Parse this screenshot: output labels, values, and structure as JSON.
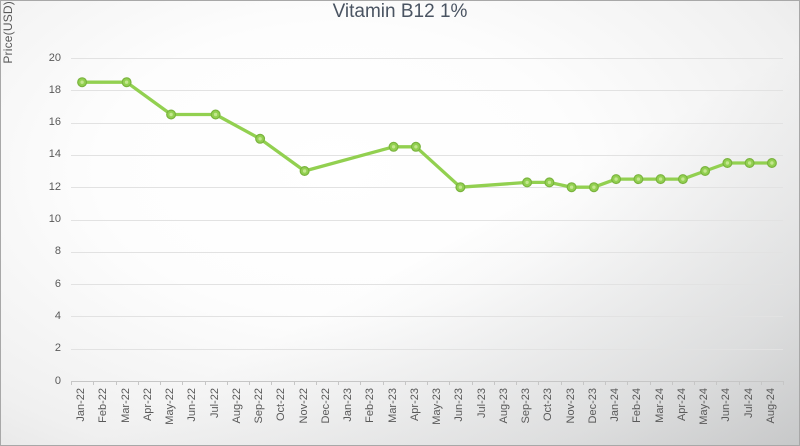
{
  "chart_data": {
    "type": "line",
    "title": "Vitamin B12 1%",
    "xlabel": "",
    "ylabel": "Price(USD)",
    "ylim": [
      0,
      20
    ],
    "yticks": [
      0,
      2,
      4,
      6,
      8,
      10,
      12,
      14,
      16,
      18,
      20
    ],
    "grid": true,
    "legend_position": "none",
    "line_color": "#92d050",
    "marker_edge_color": "#7ab33e",
    "marker_highlight_color": "#cdeb9a",
    "categories": [
      "Jan-22",
      "Feb-22",
      "Mar-22",
      "Apr-22",
      "May-22",
      "Jun-22",
      "Jul-22",
      "Aug-22",
      "Sep-22",
      "Oct-22",
      "Nov-22",
      "Dec-22",
      "Jan-23",
      "Feb-23",
      "Mar-23",
      "Apr-23",
      "May-23",
      "Jun-23",
      "Jul-23",
      "Aug-23",
      "Sep-23",
      "Oct-23",
      "Nov-23",
      "Dec-23",
      "Jan-24",
      "Feb-24",
      "Mar-24",
      "Apr-24",
      "May-24",
      "Jun-24",
      "Jul-24",
      "Aug-24"
    ],
    "series": [
      {
        "name": "Vitamin B12 1%",
        "values": [
          18.5,
          null,
          18.5,
          null,
          16.5,
          null,
          16.5,
          null,
          15,
          null,
          13,
          null,
          null,
          null,
          14.5,
          14.5,
          null,
          12,
          null,
          null,
          12.3,
          12.3,
          12,
          12,
          12.5,
          12.5,
          12.5,
          12.5,
          13,
          13.5,
          13.5,
          13.5
        ]
      }
    ]
  }
}
